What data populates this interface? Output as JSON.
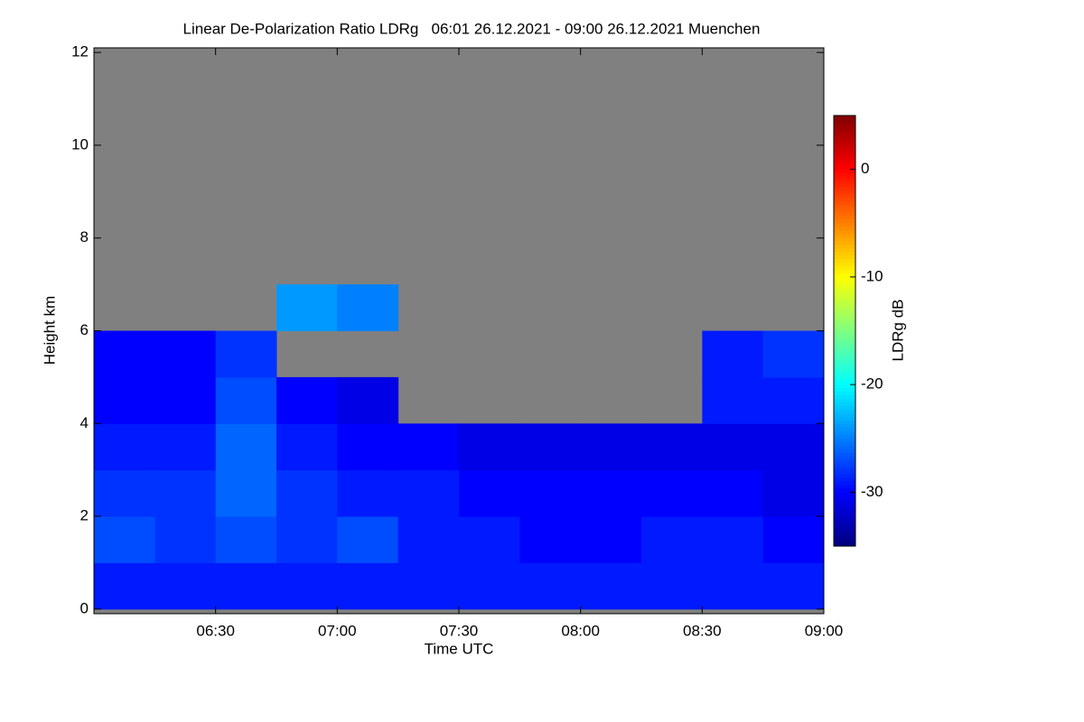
{
  "chart_data": {
    "type": "heatmap",
    "title": "Linear De-Polarization Ratio LDRg   06:01 26.12.2021 - 09:00 26.12.2021 Muenchen",
    "x_label": "Time UTC",
    "y_label": "Height km",
    "colorbar_label": "LDRg dB",
    "x_bins": [
      360,
      375,
      390,
      405,
      420,
      435,
      450,
      465,
      480,
      495,
      510,
      525,
      540
    ],
    "y_bins": [
      0,
      1,
      2,
      3,
      4,
      5,
      6,
      7,
      8,
      9,
      10,
      11,
      12
    ],
    "values": [
      [
        -29,
        -29,
        -29,
        -29,
        -29,
        -29,
        -29,
        -29,
        -29,
        -29,
        -29,
        -29
      ],
      [
        -27,
        -28,
        -27,
        -28,
        -27,
        -29,
        -29,
        -30,
        -30,
        -29,
        -29,
        -30
      ],
      [
        -28,
        -28,
        -26,
        -28,
        -29,
        -29,
        -30,
        -30,
        -30,
        -30,
        -30,
        -31
      ],
      [
        -29,
        -29,
        -26,
        -29,
        -30,
        -30,
        -31,
        -31,
        -31,
        -31,
        -31,
        -31
      ],
      [
        -30,
        -30,
        -27,
        -30,
        -31,
        null,
        null,
        null,
        null,
        null,
        -29,
        -29
      ],
      [
        -30,
        -30,
        -28,
        null,
        null,
        null,
        null,
        null,
        null,
        null,
        -29,
        -28
      ],
      [
        null,
        null,
        null,
        -24,
        -25,
        null,
        null,
        null,
        null,
        null,
        null,
        null
      ],
      [
        null,
        null,
        null,
        null,
        null,
        null,
        null,
        null,
        null,
        null,
        null,
        null
      ],
      [
        null,
        null,
        null,
        null,
        null,
        null,
        null,
        null,
        null,
        null,
        null,
        null
      ],
      [
        null,
        null,
        null,
        null,
        null,
        null,
        null,
        null,
        null,
        null,
        null,
        null
      ],
      [
        null,
        null,
        null,
        null,
        null,
        null,
        null,
        null,
        null,
        null,
        null,
        null
      ],
      [
        null,
        null,
        null,
        null,
        null,
        null,
        null,
        null,
        null,
        null,
        null,
        null
      ]
    ],
    "no_data_color": "#808080",
    "colormap": "jet",
    "xlim": [
      360,
      540
    ],
    "xticks": [
      {
        "value": 390,
        "label": "06:30"
      },
      {
        "value": 420,
        "label": "07:00"
      },
      {
        "value": 450,
        "label": "07:30"
      },
      {
        "value": 480,
        "label": "08:00"
      },
      {
        "value": 510,
        "label": "08:30"
      },
      {
        "value": 540,
        "label": "09:00"
      }
    ],
    "ylim": [
      -0.1,
      12.1
    ],
    "yticks": [
      0,
      2,
      4,
      6,
      8,
      10,
      12
    ],
    "zlim": [
      -35,
      5
    ],
    "zticks": [
      0,
      -10,
      -20,
      -30
    ]
  }
}
